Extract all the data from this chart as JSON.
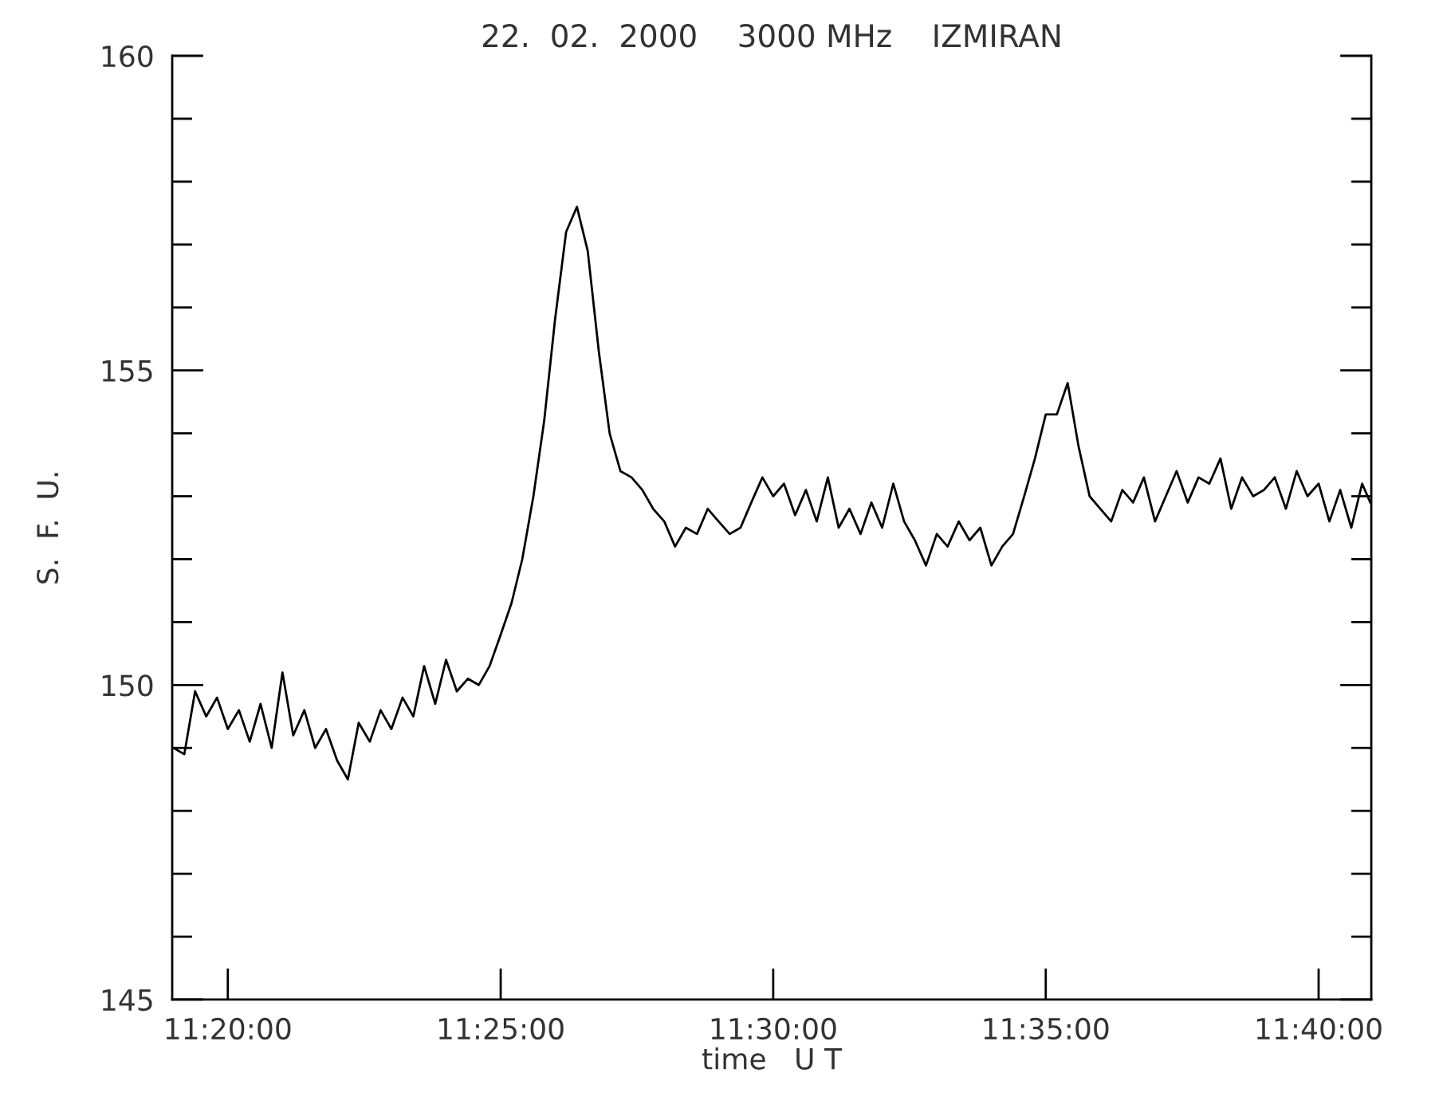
{
  "chart_data": {
    "type": "line",
    "title": "22.  02.  2000    3000 MHz    IZMIRAN",
    "xlabel": "time   U T",
    "ylabel": "S.  F.  U.",
    "xlim": [
      11.3163,
      11.6828
    ],
    "xticks": [
      {
        "value": 11.3333,
        "label": "11:20:00"
      },
      {
        "value": 11.4167,
        "label": "11:25:00"
      },
      {
        "value": 11.5,
        "label": "11:30:00"
      },
      {
        "value": 11.5833,
        "label": "11:35:00"
      },
      {
        "value": 11.6667,
        "label": "11:40:00"
      }
    ],
    "ylim": [
      145,
      160
    ],
    "yticks": [
      145,
      {
        "value": 146,
        "label": null
      },
      {
        "value": 147,
        "label": null
      },
      {
        "value": 148,
        "label": null
      },
      {
        "value": 149,
        "label": null
      },
      150,
      {
        "value": 151,
        "label": null
      },
      {
        "value": 152,
        "label": null
      },
      {
        "value": 153,
        "label": null
      },
      {
        "value": 154,
        "label": null
      },
      155,
      {
        "value": 156,
        "label": null
      },
      {
        "value": 157,
        "label": null
      },
      {
        "value": 158,
        "label": null
      },
      {
        "value": 159,
        "label": null
      },
      160
    ],
    "series": [
      {
        "color": "#000000",
        "x": [
          11.3167,
          11.32,
          11.3233,
          11.3267,
          11.33,
          11.3333,
          11.3367,
          11.34,
          11.3433,
          11.3467,
          11.35,
          11.3533,
          11.3567,
          11.36,
          11.3633,
          11.3667,
          11.37,
          11.3733,
          11.3767,
          11.38,
          11.3833,
          11.3867,
          11.39,
          11.3933,
          11.3967,
          11.4,
          11.4033,
          11.4067,
          11.41,
          11.4133,
          11.4167,
          11.42,
          11.4233,
          11.4267,
          11.43,
          11.4333,
          11.4367,
          11.44,
          11.4433,
          11.4467,
          11.45,
          11.4533,
          11.4567,
          11.46,
          11.4633,
          11.4667,
          11.47,
          11.4733,
          11.4767,
          11.48,
          11.4833,
          11.4867,
          11.49,
          11.4933,
          11.4967,
          11.5,
          11.5033,
          11.5067,
          11.51,
          11.5133,
          11.5167,
          11.52,
          11.5233,
          11.5267,
          11.53,
          11.5333,
          11.5367,
          11.54,
          11.5433,
          11.5467,
          11.55,
          11.5533,
          11.5567,
          11.56,
          11.5633,
          11.5667,
          11.57,
          11.5733,
          11.5767,
          11.58,
          11.5833,
          11.5867,
          11.59,
          11.5933,
          11.5967,
          11.6,
          11.6033,
          11.6067,
          11.61,
          11.6133,
          11.6167,
          11.62,
          11.6233,
          11.6267,
          11.63,
          11.6333,
          11.6367,
          11.64,
          11.6433,
          11.6467,
          11.65,
          11.6533,
          11.6567,
          11.66,
          11.6633,
          11.6667,
          11.67,
          11.6733,
          11.6767,
          11.68,
          11.6825
        ],
        "values": [
          149.0,
          148.9,
          149.9,
          149.5,
          149.8,
          149.3,
          149.6,
          149.1,
          149.7,
          149.0,
          150.2,
          149.2,
          149.6,
          149.0,
          149.3,
          148.8,
          148.5,
          149.4,
          149.1,
          149.6,
          149.3,
          149.8,
          149.5,
          150.3,
          149.7,
          150.4,
          149.9,
          150.1,
          150.0,
          150.3,
          150.8,
          151.3,
          152.0,
          153.0,
          154.2,
          155.8,
          157.2,
          157.6,
          156.9,
          155.3,
          154.0,
          153.4,
          153.3,
          153.1,
          152.8,
          152.6,
          152.2,
          152.5,
          152.4,
          152.8,
          152.6,
          152.4,
          152.5,
          152.9,
          153.3,
          153.0,
          153.2,
          152.7,
          153.1,
          152.6,
          153.3,
          152.5,
          152.8,
          152.4,
          152.9,
          152.5,
          153.2,
          152.6,
          152.3,
          151.9,
          152.4,
          152.2,
          152.6,
          152.3,
          152.5,
          151.9,
          152.2,
          152.4,
          153.0,
          153.6,
          154.3,
          154.3,
          154.8,
          153.8,
          153.0,
          152.8,
          152.6,
          153.1,
          152.9,
          153.3,
          152.6,
          153.0,
          153.4,
          152.9,
          153.3,
          153.2,
          153.6,
          152.8,
          153.3,
          153.0,
          153.1,
          153.3,
          152.8,
          153.4,
          153.0,
          153.2,
          152.6,
          153.1,
          152.5,
          153.2,
          152.9
        ]
      }
    ]
  }
}
